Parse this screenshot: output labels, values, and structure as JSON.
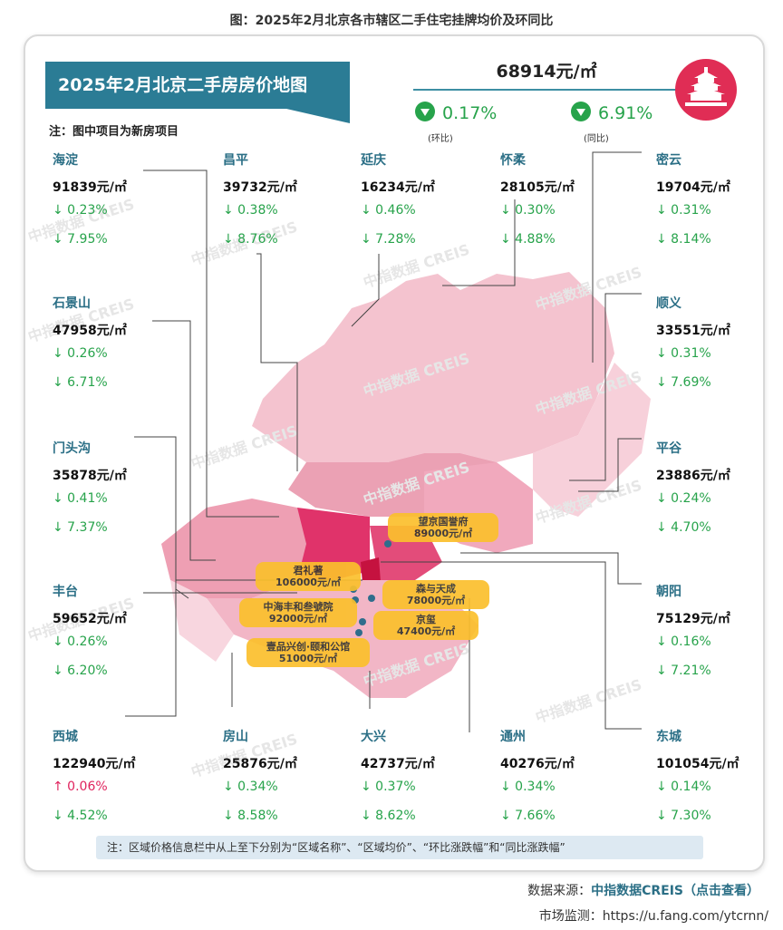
{
  "caption": "图：2025年2月北京各市辖区二手住宅挂牌均价及环同比",
  "title": "2025年2月北京二手房房价地图",
  "note_top": "注：图中项目为新房项目",
  "summary": {
    "avg_price": "68914元/㎡",
    "mom": "0.17%",
    "mom_label": "(环比)",
    "yoy": "6.91%",
    "yoy_label": "(同比)"
  },
  "watermark": "中指数据 CREIS",
  "chart_data": {
    "type": "table",
    "columns": [
      "区域名称",
      "区域均价",
      "环比涨跌幅",
      "同比涨跌幅"
    ],
    "regions": [
      {
        "name": "海淀",
        "price": "91839元/㎡",
        "mom": "↓ 0.23%",
        "yoy": "↓ 7.95%"
      },
      {
        "name": "昌平",
        "price": "39732元/㎡",
        "mom": "↓ 0.38%",
        "yoy": "↓ 8.76%"
      },
      {
        "name": "延庆",
        "price": "16234元/㎡",
        "mom": "↓ 0.46%",
        "yoy": "↓ 7.28%"
      },
      {
        "name": "怀柔",
        "price": "28105元/㎡",
        "mom": "↓ 0.30%",
        "yoy": "↓ 4.88%"
      },
      {
        "name": "密云",
        "price": "19704元/㎡",
        "mom": "↓ 0.31%",
        "yoy": "↓ 8.14%"
      },
      {
        "name": "石景山",
        "price": "47958元/㎡",
        "mom": "↓ 0.26%",
        "yoy": "↓ 6.71%"
      },
      {
        "name": "顺义",
        "price": "33551元/㎡",
        "mom": "↓ 0.31%",
        "yoy": "↓ 7.69%"
      },
      {
        "name": "门头沟",
        "price": "35878元/㎡",
        "mom": "↓ 0.41%",
        "yoy": "↓ 7.37%"
      },
      {
        "name": "平谷",
        "price": "23886元/㎡",
        "mom": "↓ 0.24%",
        "yoy": "↓ 4.70%"
      },
      {
        "name": "丰台",
        "price": "59652元/㎡",
        "mom": "↓ 0.26%",
        "yoy": "↓ 6.20%"
      },
      {
        "name": "朝阳",
        "price": "75129元/㎡",
        "mom": "↓ 0.16%",
        "yoy": "↓ 7.21%"
      },
      {
        "name": "西城",
        "price": "122940元/㎡",
        "mom": "↑ 0.06%",
        "yoy": "↓ 4.52%"
      },
      {
        "name": "房山",
        "price": "25876元/㎡",
        "mom": "↓ 0.34%",
        "yoy": "↓ 8.58%"
      },
      {
        "name": "大兴",
        "price": "42737元/㎡",
        "mom": "↓ 0.37%",
        "yoy": "↓ 8.62%"
      },
      {
        "name": "通州",
        "price": "40276元/㎡",
        "mom": "↓ 0.34%",
        "yoy": "↓ 7.66%"
      },
      {
        "name": "东城",
        "price": "101054元/㎡",
        "mom": "↓ 0.14%",
        "yoy": "↓ 7.30%"
      }
    ],
    "projects": [
      {
        "name": "望京国誉府",
        "price": "89000元/㎡"
      },
      {
        "name": "君礼著",
        "price": "106000元/㎡"
      },
      {
        "name": "森与天成",
        "price": "78000元/㎡"
      },
      {
        "name": "中海丰和叁號院",
        "price": "92000元/㎡"
      },
      {
        "name": "京玺",
        "price": "47400元/㎡"
      },
      {
        "name": "壹品兴创·颐和公馆",
        "price": "51000元/㎡"
      }
    ]
  },
  "bottom_note": "注：区域价格信息栏中从上至下分别为“区域名称”、“区域均价”、“环比涨跌幅”和“同比涨跌幅”",
  "source": {
    "prefix": "数据来源：",
    "link": "中指数据CREIS（点击查看）"
  },
  "monitor": "市场监测：https://u.fang.com/ytcrnn/",
  "colors": {
    "accent": "#2b7c95",
    "down": "#27a34b",
    "up": "#e0245e",
    "highlight": "#fbc02d"
  }
}
